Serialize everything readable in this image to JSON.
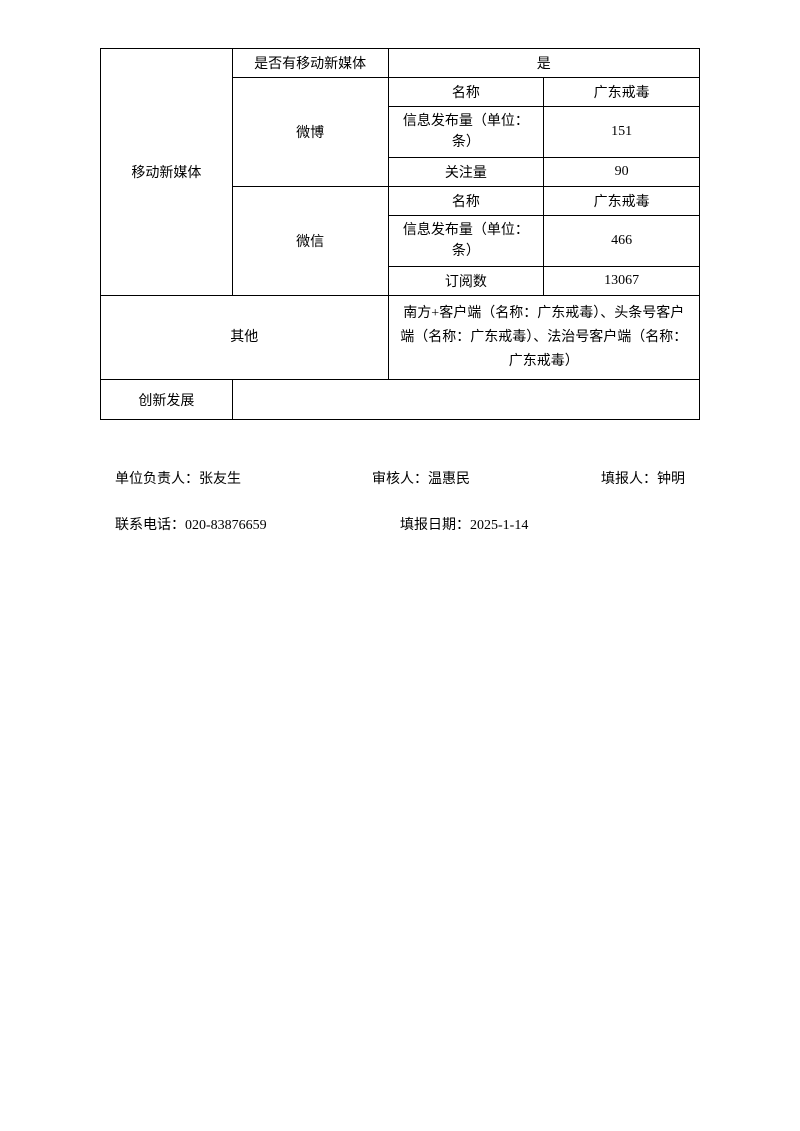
{
  "table": {
    "category_label": "移动新媒体",
    "has_mobile_media_label": "是否有移动新媒体",
    "has_mobile_media_value": "是",
    "weibo": {
      "label": "微博",
      "name_label": "名称",
      "name_value": "广东戒毒",
      "post_count_label": "信息发布量（单位：条）",
      "post_count_value": "151",
      "followers_label": "关注量",
      "followers_value": "90"
    },
    "wechat": {
      "label": "微信",
      "name_label": "名称",
      "name_value": "广东戒毒",
      "post_count_label": "信息发布量（单位：条）",
      "post_count_value": "466",
      "subscribers_label": "订阅数",
      "subscribers_value": "13067"
    },
    "other": {
      "label": "其他",
      "content": "南方+客户端（名称：广东戒毒）、头条号客户端（名称：广东戒毒）、法治号客户端（名称：广东戒毒）"
    },
    "innovation_label": "创新发展",
    "innovation_value": ""
  },
  "footer": {
    "unit_leader_label": "单位负责人：",
    "unit_leader_value": "张友生",
    "reviewer_label": "审核人：",
    "reviewer_value": "温惠民",
    "reporter_label": "填报人：",
    "reporter_value": "钟明",
    "phone_label": "联系电话：",
    "phone_value": "020-83876659",
    "report_date_label": "填报日期：",
    "report_date_value": "2025-1-14"
  }
}
